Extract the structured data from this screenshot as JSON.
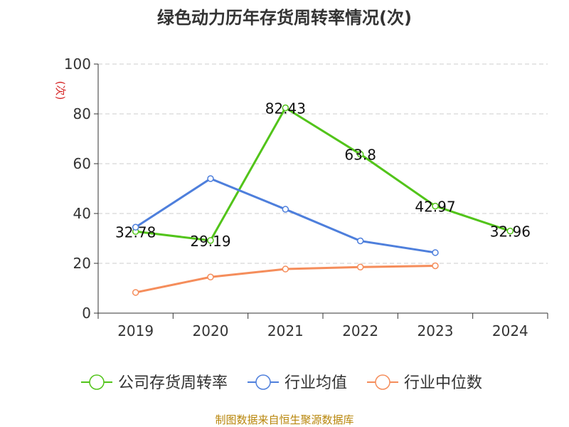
{
  "colors": {
    "series": [
      "#52c41a",
      "#4e7fdc",
      "#f58d5b"
    ],
    "source": "#b8860b",
    "ylabel": "#d62728",
    "grid": "#cccccc",
    "axis": "#333333"
  },
  "chart_data": {
    "type": "line",
    "title": "绿色动力历年存货周转率情况(次)",
    "ylabel": "(次)",
    "ylim": [
      0,
      100
    ],
    "yticks": [
      0,
      20,
      40,
      60,
      80,
      100
    ],
    "grid": true,
    "legend_position": "bottom",
    "categories": [
      "2019",
      "2020",
      "2021",
      "2022",
      "2023",
      "2024"
    ],
    "series": [
      {
        "name": "公司存货周转率",
        "values": [
          32.78,
          29.19,
          82.43,
          63.8,
          42.97,
          32.96
        ],
        "labels": [
          "32.78",
          "29.19",
          "82.43",
          "63.8",
          "42.97",
          "32.96"
        ]
      },
      {
        "name": "行业均值",
        "values": [
          34.5,
          54.0,
          41.7,
          29.0,
          24.3,
          null
        ]
      },
      {
        "name": "行业中位数",
        "values": [
          8.3,
          14.5,
          17.7,
          18.5,
          19.0,
          null
        ]
      }
    ]
  },
  "source": "制图数据来自恒生聚源数据库"
}
